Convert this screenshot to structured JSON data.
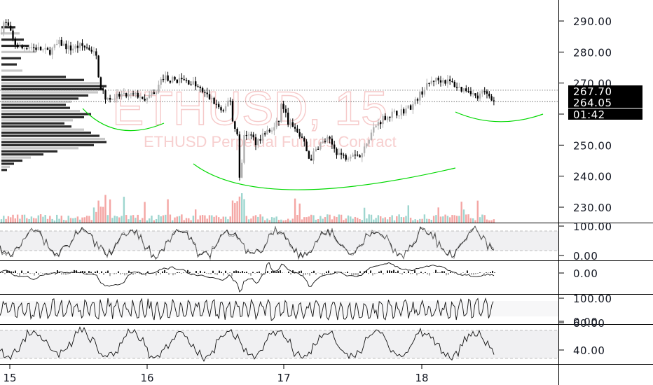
{
  "chart_data": {
    "type": "candlestick",
    "symbol_watermark": "ETHUSD, 15",
    "watermark_subtitle": "ETHUSD Perpetual Futures Contract",
    "x_axis": {
      "tick_labels": [
        "15",
        "16",
        "17",
        "18"
      ]
    },
    "y_axis": {
      "range": [
        225,
        295
      ],
      "ticks": [
        230,
        240,
        250,
        260,
        270,
        280,
        290
      ],
      "tick_labels": [
        "230.00",
        "240.00",
        "250.00",
        "260.00",
        "270.00",
        "280.00",
        "290.00"
      ]
    },
    "price_labels": [
      {
        "label": "267.70",
        "value": 267.7
      },
      {
        "label": "264.05",
        "value": 264.05
      },
      {
        "label": "01:42",
        "value": 261.6
      }
    ],
    "ohlc_path": [
      [
        0,
        286
      ],
      [
        6,
        290
      ],
      [
        12,
        288
      ],
      [
        20,
        283
      ],
      [
        30,
        281
      ],
      [
        40,
        282
      ],
      [
        55,
        281
      ],
      [
        70,
        280
      ],
      [
        85,
        283
      ],
      [
        100,
        281
      ],
      [
        115,
        282
      ],
      [
        130,
        281
      ],
      [
        138,
        278
      ],
      [
        142,
        270
      ],
      [
        148,
        266
      ],
      [
        155,
        265
      ],
      [
        170,
        266
      ],
      [
        185,
        266
      ],
      [
        200,
        266
      ],
      [
        205,
        263
      ],
      [
        210,
        266
      ],
      [
        220,
        266
      ],
      [
        232,
        272
      ],
      [
        245,
        271
      ],
      [
        260,
        271
      ],
      [
        275,
        270
      ],
      [
        290,
        267
      ],
      [
        305,
        264
      ],
      [
        320,
        260
      ],
      [
        328,
        266
      ],
      [
        333,
        256
      ],
      [
        338,
        255
      ],
      [
        343,
        236
      ],
      [
        348,
        253
      ],
      [
        355,
        254
      ],
      [
        365,
        251
      ],
      [
        378,
        254
      ],
      [
        390,
        255
      ],
      [
        398,
        258
      ],
      [
        402,
        264
      ],
      [
        410,
        258
      ],
      [
        420,
        255
      ],
      [
        432,
        252
      ],
      [
        442,
        245
      ],
      [
        455,
        250
      ],
      [
        468,
        252
      ],
      [
        480,
        248
      ],
      [
        492,
        246
      ],
      [
        505,
        248
      ],
      [
        515,
        246
      ],
      [
        525,
        252
      ],
      [
        535,
        256
      ],
      [
        548,
        259
      ],
      [
        560,
        260
      ],
      [
        575,
        261
      ],
      [
        590,
        263
      ],
      [
        598,
        266
      ],
      [
        605,
        268
      ],
      [
        618,
        271
      ],
      [
        632,
        271
      ],
      [
        645,
        270
      ],
      [
        658,
        268
      ],
      [
        670,
        268
      ],
      [
        680,
        265
      ],
      [
        690,
        267
      ],
      [
        700,
        266
      ],
      [
        705,
        264
      ]
    ],
    "volume_profile": [
      {
        "price": 288,
        "size": 20
      },
      {
        "price": 286,
        "size": 26
      },
      {
        "price": 284,
        "size": 32
      },
      {
        "price": 282,
        "size": 40
      },
      {
        "price": 280,
        "size": 50
      },
      {
        "price": 278,
        "size": 28
      },
      {
        "price": 276,
        "size": 22
      },
      {
        "price": 274,
        "size": 30
      },
      {
        "price": 272,
        "size": 92
      },
      {
        "price": 271,
        "size": 118
      },
      {
        "price": 270,
        "size": 140
      },
      {
        "price": 269,
        "size": 150
      },
      {
        "price": 268,
        "size": 146
      },
      {
        "price": 267,
        "size": 138
      },
      {
        "price": 266,
        "size": 124
      },
      {
        "price": 265,
        "size": 110
      },
      {
        "price": 264,
        "size": 100
      },
      {
        "price": 263,
        "size": 92
      },
      {
        "price": 262,
        "size": 98
      },
      {
        "price": 261,
        "size": 112
      },
      {
        "price": 260,
        "size": 128
      },
      {
        "price": 259,
        "size": 118
      },
      {
        "price": 258,
        "size": 102
      },
      {
        "price": 257,
        "size": 90
      },
      {
        "price": 256,
        "size": 100
      },
      {
        "price": 255,
        "size": 118
      },
      {
        "price": 254,
        "size": 128
      },
      {
        "price": 253,
        "size": 140
      },
      {
        "price": 252,
        "size": 148
      },
      {
        "price": 251,
        "size": 150
      },
      {
        "price": 250,
        "size": 132
      },
      {
        "price": 249,
        "size": 110
      },
      {
        "price": 248,
        "size": 80
      },
      {
        "price": 247,
        "size": 60
      },
      {
        "price": 246,
        "size": 42
      },
      {
        "price": 245,
        "size": 30
      },
      {
        "price": 244,
        "size": 18
      },
      {
        "price": 243,
        "size": 12
      },
      {
        "price": 242,
        "size": 8
      }
    ],
    "indicator_panels": [
      {
        "ticks": [
          "100.00",
          "0.00"
        ],
        "range": [
          0,
          100
        ]
      },
      {
        "ticks": [
          "0.00"
        ],
        "range": [
          -1,
          1
        ]
      },
      {
        "ticks": [
          "100.00",
          "0.00"
        ],
        "range": [
          0,
          100
        ]
      },
      {
        "ticks": [
          "60.00",
          "40.00"
        ],
        "range": [
          25,
          65
        ]
      }
    ],
    "colors": {
      "up": "#26a69a",
      "down": "#ef5350",
      "candle": "#000000",
      "arc": "#00d800",
      "badge_bg": "#000000",
      "grid": "#e6e6e6",
      "axis": "#000000"
    }
  }
}
